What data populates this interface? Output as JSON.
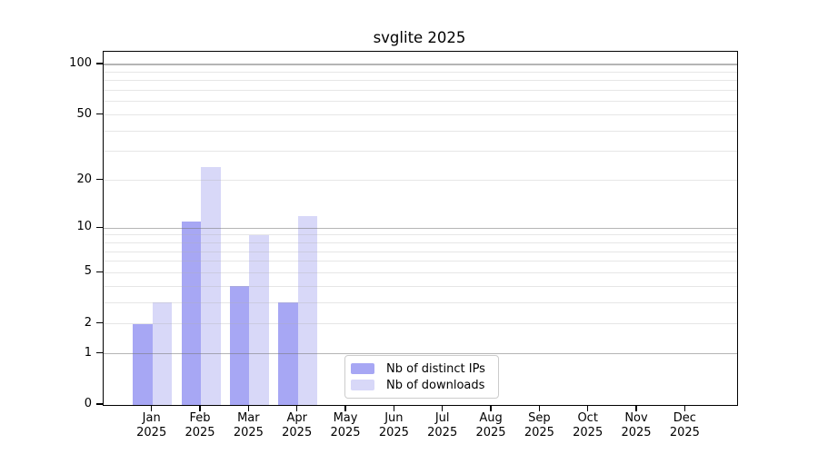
{
  "title": "svglite 2025",
  "colors": {
    "ips": "#a7a7f4",
    "downloads": "#d8d8f8",
    "axis": "#000000",
    "legend_border": "#cccccc"
  },
  "y_axis": {
    "tick_values": [
      0,
      1,
      2,
      5,
      10,
      20,
      50,
      100
    ]
  },
  "x_axis": {
    "months": [
      "Jan",
      "Feb",
      "Mar",
      "Apr",
      "May",
      "Jun",
      "Jul",
      "Aug",
      "Sep",
      "Oct",
      "Nov",
      "Dec"
    ],
    "year": "2025"
  },
  "legend": {
    "items": [
      {
        "label": "Nb of distinct IPs",
        "key": "ips"
      },
      {
        "label": "Nb of downloads",
        "key": "downloads"
      }
    ]
  },
  "chart_data": {
    "type": "bar",
    "title": "svglite 2025",
    "categories": [
      "Jan 2025",
      "Feb 2025",
      "Mar 2025",
      "Apr 2025",
      "May 2025",
      "Jun 2025",
      "Jul 2025",
      "Aug 2025",
      "Sep 2025",
      "Oct 2025",
      "Nov 2025",
      "Dec 2025"
    ],
    "series": [
      {
        "name": "Nb of distinct IPs",
        "color": "#a7a7f4",
        "values": [
          2,
          11,
          4,
          3,
          0,
          0,
          0,
          0,
          0,
          0,
          0,
          0
        ]
      },
      {
        "name": "Nb of downloads",
        "color": "#d8d8f8",
        "values": [
          3,
          24,
          9,
          12,
          0,
          0,
          0,
          0,
          0,
          0,
          0,
          0
        ]
      }
    ],
    "yscale": "log1p",
    "ylim": [
      0,
      100
    ],
    "y_tick_values": [
      0,
      1,
      2,
      5,
      10,
      20,
      50,
      100
    ],
    "grid_major_values": [
      1,
      10,
      100
    ],
    "grid_minor_values": [
      2,
      3,
      4,
      5,
      6,
      7,
      8,
      9,
      20,
      30,
      40,
      50,
      60,
      70,
      80,
      90
    ],
    "grid": "horizontal",
    "legend_position": "inside-lower-center"
  }
}
